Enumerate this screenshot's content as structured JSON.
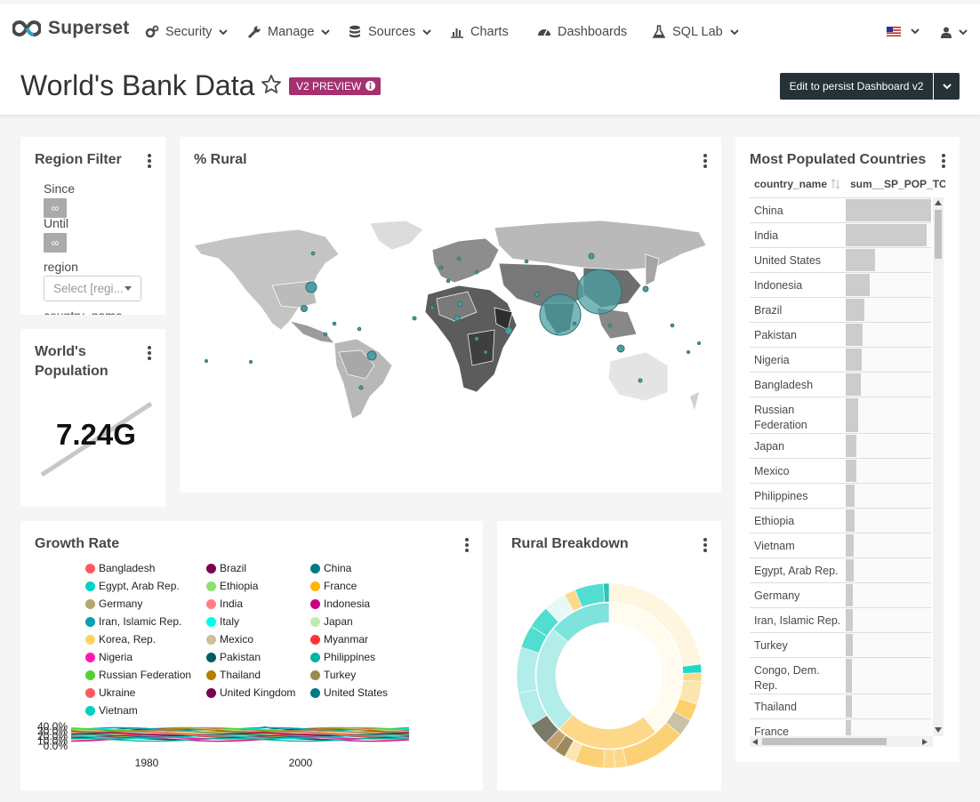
{
  "navbar": {
    "brand": "Superset",
    "items": [
      {
        "label": "Security",
        "icon": "cogs-icon"
      },
      {
        "label": "Manage",
        "icon": "wrench-icon"
      },
      {
        "label": "Sources",
        "icon": "database-icon"
      },
      {
        "label": "Charts",
        "icon": "bar-chart-icon"
      },
      {
        "label": "Dashboards",
        "icon": "dashboard-icon"
      },
      {
        "label": "SQL Lab",
        "icon": "flask-icon"
      }
    ]
  },
  "header": {
    "title": "World's Bank Data",
    "badge": "V2 PREVIEW",
    "edit_button": "Edit to persist Dashboard v2"
  },
  "region_filter": {
    "title": "Region Filter",
    "since_label": "Since",
    "since_value": "∞",
    "until_label": "Until",
    "until_value": "∞",
    "region_label": "region",
    "region_placeholder": "Select [regi...",
    "country_label": "country_name"
  },
  "world_population": {
    "title_line1": "World's",
    "title_line2": "Population",
    "value": "7.24G"
  },
  "rural_map": {
    "title": "% Rural"
  },
  "populated": {
    "title": "Most Populated Countries",
    "col1": "country_name",
    "col2": "sum__SP_POP_TOTL",
    "rows": [
      {
        "name": "China",
        "value": 1.0
      },
      {
        "name": "India",
        "value": 0.95
      },
      {
        "name": "United States",
        "value": 0.34
      },
      {
        "name": "Indonesia",
        "value": 0.28
      },
      {
        "name": "Brazil",
        "value": 0.22
      },
      {
        "name": "Pakistan",
        "value": 0.2
      },
      {
        "name": "Nigeria",
        "value": 0.19
      },
      {
        "name": "Bangladesh",
        "value": 0.18
      },
      {
        "name": "Russian Federation",
        "value": 0.15
      },
      {
        "name": "Japan",
        "value": 0.13
      },
      {
        "name": "Mexico",
        "value": 0.13
      },
      {
        "name": "Philippines",
        "value": 0.1
      },
      {
        "name": "Ethiopia",
        "value": 0.1
      },
      {
        "name": "Vietnam",
        "value": 0.09
      },
      {
        "name": "Egypt, Arab Rep.",
        "value": 0.09
      },
      {
        "name": "Germany",
        "value": 0.08
      },
      {
        "name": "Iran, Islamic Rep.",
        "value": 0.08
      },
      {
        "name": "Turkey",
        "value": 0.08
      },
      {
        "name": "Congo, Dem. Rep.",
        "value": 0.07
      },
      {
        "name": "Thailand",
        "value": 0.07
      },
      {
        "name": "France",
        "value": 0.065
      }
    ]
  },
  "growth_rate": {
    "title": "Growth Rate",
    "legend": [
      {
        "name": "Bangladesh",
        "color": "#ff5a5f"
      },
      {
        "name": "Brazil",
        "color": "#7b0051"
      },
      {
        "name": "China",
        "color": "#007a87"
      },
      {
        "name": "Egypt, Arab Rep.",
        "color": "#00d1c1"
      },
      {
        "name": "Ethiopia",
        "color": "#8ce071"
      },
      {
        "name": "France",
        "color": "#ffb400"
      },
      {
        "name": "Germany",
        "color": "#b4a76c"
      },
      {
        "name": "India",
        "color": "#ff8083"
      },
      {
        "name": "Indonesia",
        "color": "#cc0086"
      },
      {
        "name": "Iran, Islamic Rep.",
        "color": "#00a1b3"
      },
      {
        "name": "Italy",
        "color": "#00ffeb"
      },
      {
        "name": "Japan",
        "color": "#bbedab"
      },
      {
        "name": "Korea, Rep.",
        "color": "#ffd266"
      },
      {
        "name": "Mexico",
        "color": "#cbc29a"
      },
      {
        "name": "Myanmar",
        "color": "#ff3339"
      },
      {
        "name": "Nigeria",
        "color": "#ff1ab1"
      },
      {
        "name": "Pakistan",
        "color": "#005c66"
      },
      {
        "name": "Philippines",
        "color": "#00b3a5"
      },
      {
        "name": "Russian Federation",
        "color": "#55d12e"
      },
      {
        "name": "Thailand",
        "color": "#b37e00"
      },
      {
        "name": "Turkey",
        "color": "#988b4e"
      },
      {
        "name": "Ukraine",
        "color": "#ff5a5f"
      },
      {
        "name": "United Kingdom",
        "color": "#7b0051"
      },
      {
        "name": "United States",
        "color": "#007a87"
      },
      {
        "name": "Vietnam",
        "color": "#00d1c1"
      }
    ],
    "y_ticks": [
      "40.0%",
      "30.0%",
      "20.0%",
      "10.0%",
      "0.0%"
    ],
    "x_ticks": [
      "1980",
      "2000"
    ]
  },
  "rural_breakdown": {
    "title": "Rural Breakdown"
  },
  "colors": {
    "dark_button": "#263238",
    "badge": "#a5326f",
    "map_bubble": "#4b9fa3"
  }
}
